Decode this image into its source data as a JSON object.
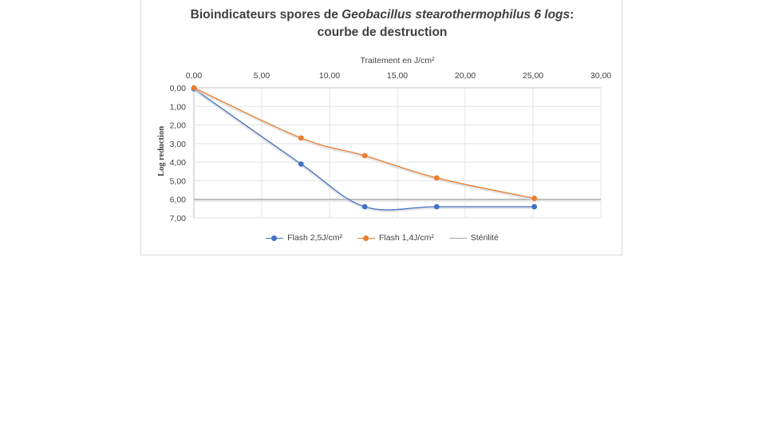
{
  "chart_data": {
    "type": "line",
    "title_part1": "Bioindicateurs spores de ",
    "title_italic": "Geobacillus stearothermophilus 6 logs",
    "title_part2": ":",
    "title_line2": "courbe de destruction",
    "xlabel": "Traitement en J/cm²",
    "ylabel": "Log reduction",
    "xlim": [
      0,
      30
    ],
    "ylim": [
      0,
      7
    ],
    "x_ticks": [
      "0,00",
      "5,00",
      "10,00",
      "15,00",
      "20,00",
      "25,00",
      "30,00"
    ],
    "y_ticks": [
      "0,00",
      "1,00",
      "2,00",
      "3,00",
      "4,00",
      "5,00",
      "6,00",
      "7,00"
    ],
    "x_axis_position": "top",
    "y_inverted": true,
    "grid": true,
    "legend_position": "bottom",
    "series": [
      {
        "name": "Flash  2,5J/cm²",
        "color": "#4472c4",
        "x": [
          0,
          7.9,
          12.6,
          17.9,
          25.1
        ],
        "y": [
          0.05,
          4.1,
          6.4,
          6.4,
          6.4
        ]
      },
      {
        "name": "Flash 1,4J/cm²",
        "color": "#ed7d31",
        "x": [
          0,
          7.9,
          12.6,
          17.9,
          25.1
        ],
        "y": [
          0.0,
          2.7,
          3.65,
          4.85,
          5.95
        ]
      }
    ],
    "reference_line": {
      "name": "Stérilité",
      "y": 6,
      "color": "#a5a5a5"
    }
  }
}
